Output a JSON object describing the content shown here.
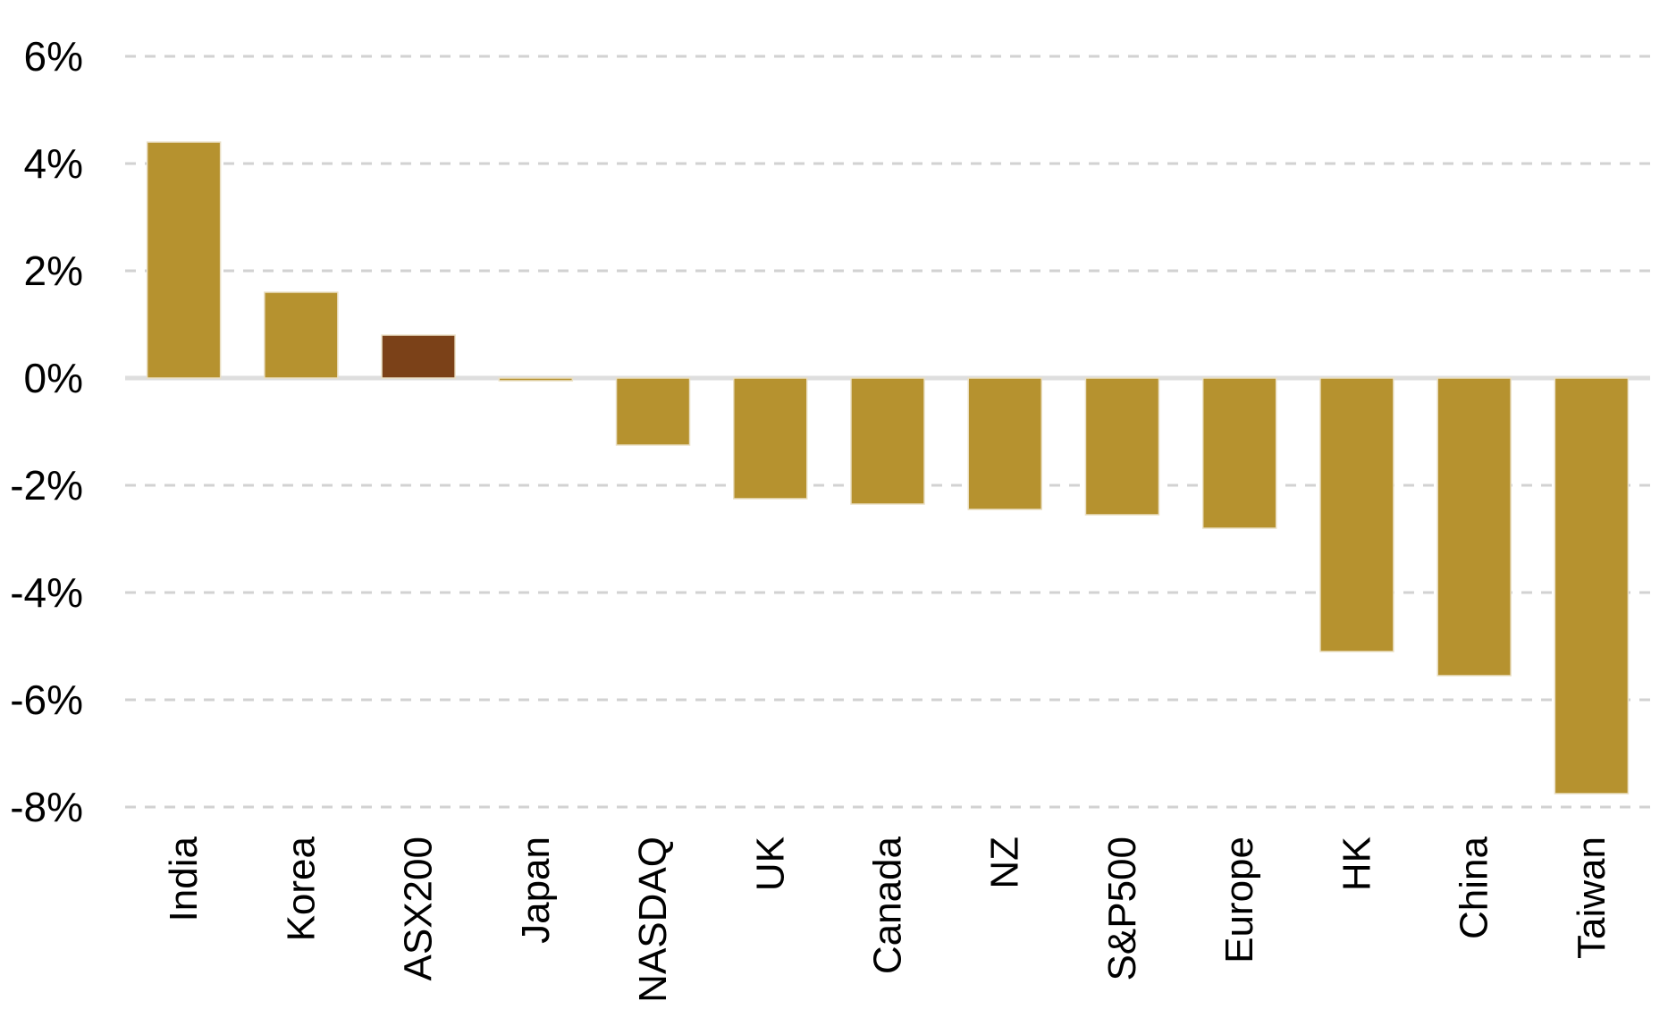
{
  "chart_data": {
    "type": "bar",
    "title": "",
    "xlabel": "",
    "ylabel": "",
    "unit": "%",
    "categories": [
      "India",
      "Korea",
      "ASX200",
      "Japan",
      "NASDAQ",
      "UK",
      "Canada",
      "NZ",
      "S&P500",
      "Europe",
      "HK",
      "China",
      "Taiwan"
    ],
    "values": [
      4.4,
      1.6,
      0.8,
      -0.05,
      -1.25,
      -2.25,
      -2.35,
      -2.45,
      -2.55,
      -2.8,
      -5.1,
      -5.55,
      -7.75
    ],
    "bar_color": "#B6922F",
    "highlight_category": "ASX200",
    "highlight_color": "#7B4118",
    "bar_edge_color": "#EADFC4",
    "yticks": [
      6,
      4,
      2,
      0,
      -2,
      -4,
      -6,
      -8
    ],
    "ytick_labels": [
      "6%",
      "4%",
      "2%",
      "0%",
      "-2%",
      "-4%",
      "-6%",
      "-8%"
    ],
    "ylim": [
      -8.7,
      7.0
    ],
    "grid": "horizontal-dashed",
    "gridline_color": "#D2D2D2",
    "zero_line_color": "#DEDEDE",
    "axis_text_color": "#000000",
    "legend_position": "none"
  }
}
